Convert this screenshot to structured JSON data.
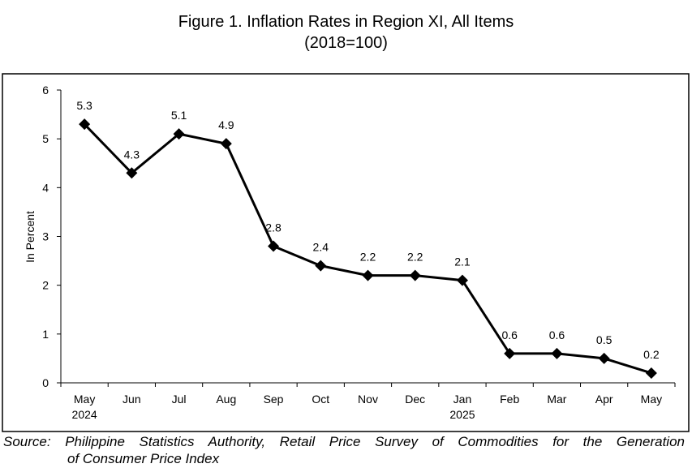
{
  "chart_data": {
    "type": "line",
    "title": "Figure 1. Inflation Rates in Region XI, All Items",
    "subtitle": "(2018=100)",
    "ylabel": "In Percent",
    "xlabel": "",
    "ylim": [
      0,
      6
    ],
    "yticks": [
      "0",
      "1",
      "2",
      "3",
      "4",
      "5",
      "6"
    ],
    "categories": [
      [
        "May",
        "2024"
      ],
      [
        "Jun",
        ""
      ],
      [
        "Jul",
        ""
      ],
      [
        "Aug",
        ""
      ],
      [
        "Sep",
        ""
      ],
      [
        "Oct",
        ""
      ],
      [
        "Nov",
        ""
      ],
      [
        "Dec",
        ""
      ],
      [
        "Jan",
        "2025"
      ],
      [
        "Feb",
        ""
      ],
      [
        "Mar",
        ""
      ],
      [
        "Apr",
        ""
      ],
      [
        "May",
        ""
      ]
    ],
    "values": [
      5.3,
      4.3,
      5.1,
      4.9,
      2.8,
      2.4,
      2.2,
      2.2,
      2.1,
      0.6,
      0.6,
      0.5,
      0.2
    ],
    "data_labels": [
      "5.3",
      "4.3",
      "5.1",
      "4.9",
      "2.8",
      "2.4",
      "2.2",
      "2.2",
      "2.1",
      "0.6",
      "0.6",
      "0.5",
      "0.2"
    ],
    "marker": "diamond",
    "line_color": "#000000",
    "grid": false,
    "legend": "none"
  },
  "source": {
    "line1": "Source: Philippine Statistics Authority, Retail Price Survey of Commodities for the Generation",
    "line2": "of Consumer Price Index"
  }
}
